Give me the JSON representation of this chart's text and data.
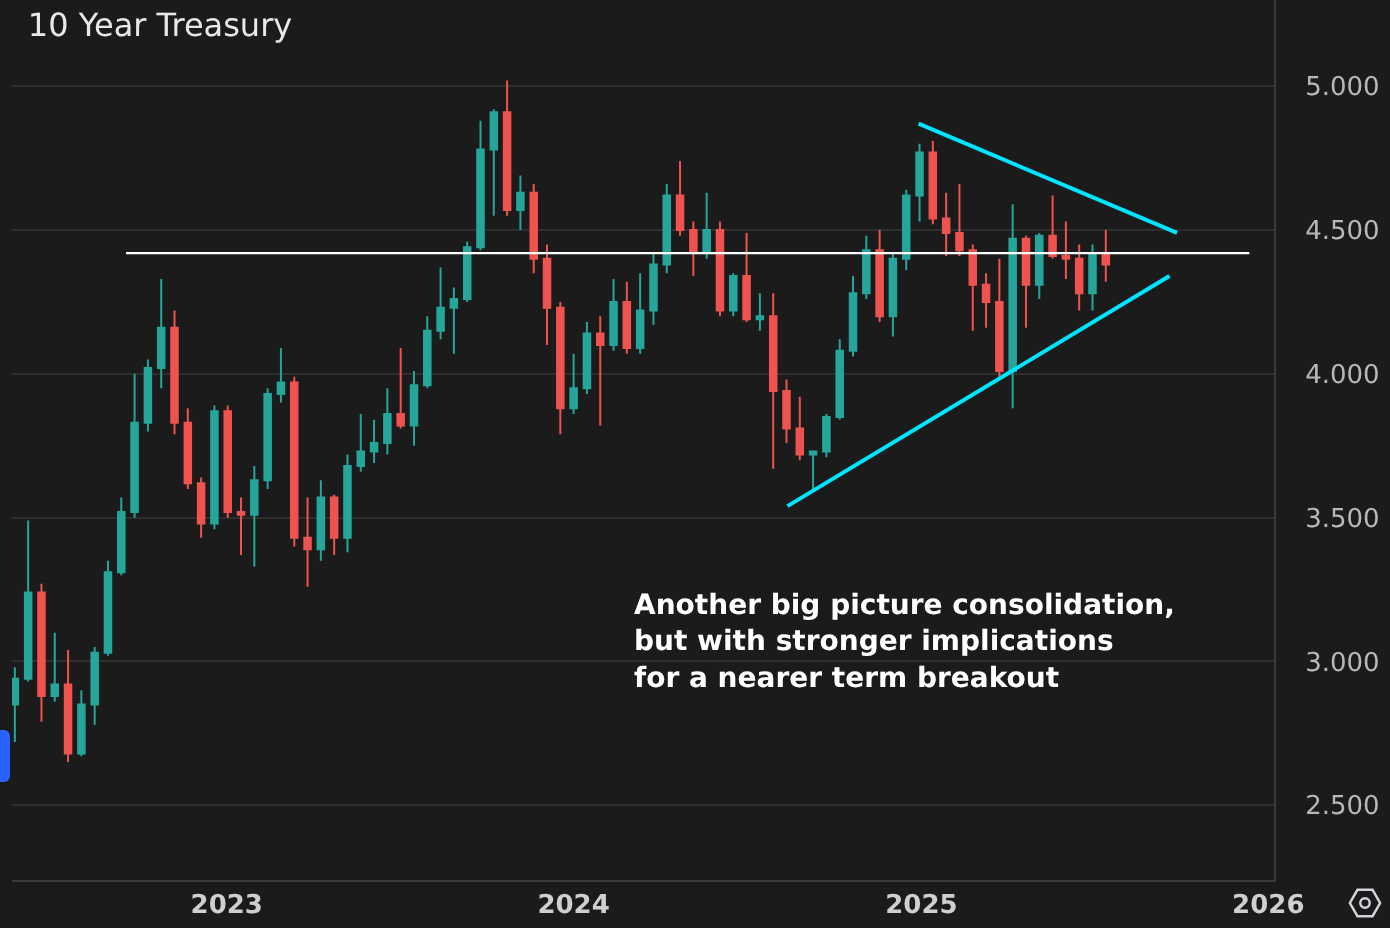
{
  "chart_data": {
    "type": "candlestick",
    "title": "10 Year Treasury",
    "x": [
      "2022-05-23",
      "2022-06-06",
      "2022-06-20",
      "2022-07-04",
      "2022-07-18",
      "2022-08-01",
      "2022-08-15",
      "2022-08-29",
      "2022-09-12",
      "2022-09-26",
      "2022-10-10",
      "2022-10-24",
      "2022-11-07",
      "2022-11-21",
      "2022-12-05",
      "2022-12-19",
      "2023-01-02",
      "2023-01-16",
      "2023-01-30",
      "2023-02-13",
      "2023-02-27",
      "2023-03-13",
      "2023-03-27",
      "2023-04-10",
      "2023-04-24",
      "2023-05-08",
      "2023-05-22",
      "2023-06-05",
      "2023-06-19",
      "2023-07-03",
      "2023-07-17",
      "2023-07-31",
      "2023-08-14",
      "2023-08-28",
      "2023-09-11",
      "2023-09-25",
      "2023-10-09",
      "2023-10-23",
      "2023-11-06",
      "2023-11-20",
      "2023-12-04",
      "2023-12-18",
      "2024-01-01",
      "2024-01-15",
      "2024-01-29",
      "2024-02-12",
      "2024-02-26",
      "2024-03-11",
      "2024-03-25",
      "2024-04-08",
      "2024-04-22",
      "2024-05-06",
      "2024-05-20",
      "2024-06-03",
      "2024-06-17",
      "2024-07-01",
      "2024-07-15",
      "2024-07-29",
      "2024-08-12",
      "2024-08-26",
      "2024-09-09",
      "2024-09-23",
      "2024-10-07",
      "2024-10-21",
      "2024-11-04",
      "2024-11-18",
      "2024-12-02",
      "2024-12-16",
      "2024-12-30",
      "2025-01-13",
      "2025-01-27",
      "2025-02-10",
      "2025-02-24",
      "2025-03-10",
      "2025-03-24",
      "2025-04-07",
      "2025-04-21",
      "2025-05-05",
      "2025-05-19",
      "2025-06-02",
      "2025-06-16",
      "2025-06-30",
      "2025-07-14"
    ],
    "ohlc": [
      [
        2.85,
        2.98,
        2.72,
        2.94
      ],
      [
        2.94,
        3.49,
        2.93,
        3.24
      ],
      [
        3.24,
        3.27,
        2.79,
        2.88
      ],
      [
        2.88,
        3.1,
        2.86,
        2.92
      ],
      [
        2.92,
        3.04,
        2.65,
        2.68
      ],
      [
        2.68,
        2.9,
        2.67,
        2.85
      ],
      [
        2.85,
        3.05,
        2.78,
        3.03
      ],
      [
        3.03,
        3.35,
        3.02,
        3.31
      ],
      [
        3.31,
        3.57,
        3.3,
        3.52
      ],
      [
        3.52,
        4.0,
        3.5,
        3.83
      ],
      [
        3.83,
        4.05,
        3.8,
        4.02
      ],
      [
        4.02,
        4.33,
        3.95,
        4.16
      ],
      [
        4.16,
        4.22,
        3.79,
        3.83
      ],
      [
        3.83,
        3.88,
        3.6,
        3.62
      ],
      [
        3.62,
        3.64,
        3.43,
        3.48
      ],
      [
        3.48,
        3.89,
        3.46,
        3.87
      ],
      [
        3.87,
        3.89,
        3.5,
        3.52
      ],
      [
        3.52,
        3.57,
        3.37,
        3.51
      ],
      [
        3.51,
        3.68,
        3.33,
        3.63
      ],
      [
        3.63,
        3.95,
        3.6,
        3.93
      ],
      [
        3.93,
        4.09,
        3.9,
        3.97
      ],
      [
        3.97,
        3.99,
        3.4,
        3.43
      ],
      [
        3.43,
        3.57,
        3.26,
        3.39
      ],
      [
        3.39,
        3.63,
        3.35,
        3.57
      ],
      [
        3.57,
        3.58,
        3.37,
        3.43
      ],
      [
        3.43,
        3.72,
        3.38,
        3.68
      ],
      [
        3.68,
        3.86,
        3.66,
        3.73
      ],
      [
        3.73,
        3.84,
        3.69,
        3.76
      ],
      [
        3.76,
        3.95,
        3.72,
        3.86
      ],
      [
        3.86,
        4.09,
        3.81,
        3.82
      ],
      [
        3.82,
        4.01,
        3.75,
        3.96
      ],
      [
        3.96,
        4.2,
        3.95,
        4.15
      ],
      [
        4.15,
        4.37,
        4.12,
        4.23
      ],
      [
        4.23,
        4.3,
        4.07,
        4.26
      ],
      [
        4.26,
        4.46,
        4.25,
        4.44
      ],
      [
        4.44,
        4.88,
        4.43,
        4.78
      ],
      [
        4.78,
        4.92,
        4.55,
        4.91
      ],
      [
        4.91,
        5.02,
        4.55,
        4.57
      ],
      [
        4.57,
        4.69,
        4.5,
        4.63
      ],
      [
        4.63,
        4.66,
        4.35,
        4.4
      ],
      [
        4.4,
        4.45,
        4.1,
        4.23
      ],
      [
        4.23,
        4.25,
        3.79,
        3.88
      ],
      [
        3.88,
        4.07,
        3.86,
        3.95
      ],
      [
        3.95,
        4.18,
        3.93,
        4.14
      ],
      [
        4.14,
        4.2,
        3.82,
        4.1
      ],
      [
        4.1,
        4.33,
        4.08,
        4.25
      ],
      [
        4.25,
        4.32,
        4.07,
        4.09
      ],
      [
        4.09,
        4.35,
        4.07,
        4.22
      ],
      [
        4.22,
        4.42,
        4.17,
        4.38
      ],
      [
        4.38,
        4.66,
        4.35,
        4.62
      ],
      [
        4.62,
        4.74,
        4.48,
        4.5
      ],
      [
        4.5,
        4.53,
        4.34,
        4.42
      ],
      [
        4.42,
        4.63,
        4.4,
        4.5
      ],
      [
        4.5,
        4.53,
        4.2,
        4.22
      ],
      [
        4.22,
        4.35,
        4.2,
        4.34
      ],
      [
        4.34,
        4.49,
        4.18,
        4.19
      ],
      [
        4.19,
        4.28,
        4.15,
        4.2
      ],
      [
        4.2,
        4.28,
        3.67,
        3.94
      ],
      [
        3.94,
        3.98,
        3.76,
        3.81
      ],
      [
        3.81,
        3.92,
        3.7,
        3.72
      ],
      [
        3.72,
        3.73,
        3.6,
        3.73
      ],
      [
        3.73,
        3.86,
        3.71,
        3.85
      ],
      [
        3.85,
        4.12,
        3.84,
        4.08
      ],
      [
        4.08,
        4.34,
        4.06,
        4.28
      ],
      [
        4.28,
        4.48,
        4.26,
        4.43
      ],
      [
        4.43,
        4.5,
        4.18,
        4.2
      ],
      [
        4.2,
        4.42,
        4.13,
        4.4
      ],
      [
        4.4,
        4.64,
        4.36,
        4.62
      ],
      [
        4.62,
        4.8,
        4.53,
        4.77
      ],
      [
        4.77,
        4.81,
        4.52,
        4.54
      ],
      [
        4.54,
        4.63,
        4.41,
        4.49
      ],
      [
        4.49,
        4.66,
        4.41,
        4.43
      ],
      [
        4.43,
        4.45,
        4.15,
        4.31
      ],
      [
        4.31,
        4.35,
        4.16,
        4.25
      ],
      [
        4.25,
        4.4,
        3.99,
        4.01
      ],
      [
        4.01,
        4.59,
        3.88,
        4.47
      ],
      [
        4.47,
        4.48,
        4.16,
        4.31
      ],
      [
        4.31,
        4.49,
        4.26,
        4.48
      ],
      [
        4.48,
        4.62,
        4.4,
        4.41
      ],
      [
        4.41,
        4.53,
        4.33,
        4.4
      ],
      [
        4.4,
        4.45,
        4.22,
        4.28
      ],
      [
        4.28,
        4.45,
        4.22,
        4.42
      ],
      [
        4.42,
        4.5,
        4.32,
        4.38
      ]
    ],
    "series": [
      {
        "type": "line",
        "color": "#ffffff",
        "x": [
          "2022-09-17",
          "2025-12-12"
        ],
        "values": [
          4.42,
          4.42
        ]
      },
      {
        "type": "line",
        "color": "#00e5ff",
        "x": [
          "2024-12-29",
          "2025-09-27"
        ],
        "values": [
          4.87,
          4.49
        ]
      },
      {
        "type": "line",
        "color": "#00e5ff",
        "x": [
          "2024-08-13",
          "2025-09-19"
        ],
        "values": [
          3.54,
          4.34
        ]
      }
    ],
    "xlim": [
      "2022-05-20",
      "2026-01-07"
    ],
    "xticks": [
      {
        "value": "2023-01-01",
        "label": "2023"
      },
      {
        "value": "2024-01-01",
        "label": "2024"
      },
      {
        "value": "2025-01-01",
        "label": "2025"
      },
      {
        "value": "2026-01-01",
        "label": "2026"
      }
    ],
    "ylim": [
      2.24,
      5.3
    ],
    "yticks": [
      {
        "value": 2.5,
        "label": "2.500"
      },
      {
        "value": 3,
        "label": "3.000"
      },
      {
        "value": 3.5,
        "label": "3.500"
      },
      {
        "value": 4,
        "label": "4.000"
      },
      {
        "value": 4.5,
        "label": "4.500"
      },
      {
        "value": 5,
        "label": "5.000"
      }
    ],
    "grid": "y",
    "marker": "none",
    "line_style": "solid",
    "annotations": [
      "Another big picture consolidation,\nbut with stronger implications\nfor a nearer term breakout"
    ]
  }
}
